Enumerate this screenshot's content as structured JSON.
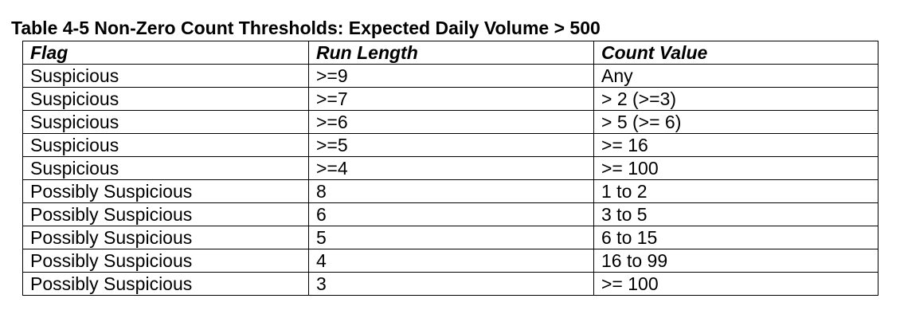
{
  "title": "Table 4-5 Non-Zero Count Thresholds: Expected Daily Volume > 500",
  "table": {
    "headers": [
      "Flag",
      "Run Length",
      "Count Value"
    ],
    "rows": [
      [
        "Suspicious",
        ">=9",
        "Any"
      ],
      [
        "Suspicious",
        ">=7",
        "> 2  (>=3)"
      ],
      [
        "Suspicious",
        ">=6",
        "> 5 (>= 6)"
      ],
      [
        "Suspicious",
        ">=5",
        ">= 16"
      ],
      [
        "Suspicious",
        ">=4",
        ">= 100"
      ],
      [
        "Possibly Suspicious",
        "8",
        "1 to 2"
      ],
      [
        "Possibly Suspicious",
        "6",
        "3 to 5"
      ],
      [
        "Possibly Suspicious",
        "5",
        "6 to 15"
      ],
      [
        "Possibly Suspicious",
        "4",
        "16 to 99"
      ],
      [
        "Possibly Suspicious",
        "3",
        ">= 100"
      ]
    ]
  }
}
